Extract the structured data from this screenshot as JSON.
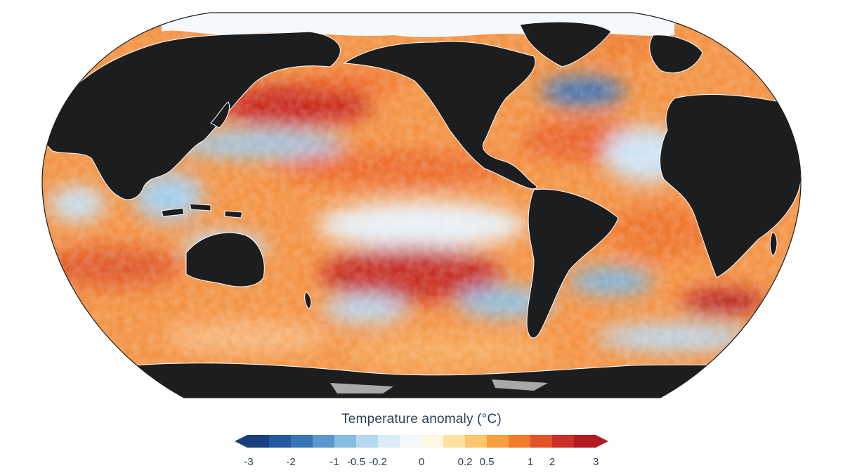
{
  "colors": {
    "land": "#1c1d1f",
    "ice": "#f8fbfd",
    "antarctic_shelf": "#a9a9a9",
    "text": "#2c3e55",
    "scale": [
      "#1a3f7e",
      "#2458a0",
      "#3675b8",
      "#5b98cd",
      "#88bde2",
      "#b6d8ee",
      "#dcecf7",
      "#f3f8fc",
      "#fef7e4",
      "#fde2a2",
      "#fbc66d",
      "#f7a03d",
      "#f17a2b",
      "#e2532b",
      "#cc2e28",
      "#b21b22"
    ]
  },
  "legend": {
    "title": "Temperature anomaly (°C)",
    "tick_labels": [
      "-3",
      "-2",
      "-1",
      "-0.5",
      "-0.2",
      "0",
      "0.2",
      "0.5",
      "1",
      "2",
      "3"
    ]
  },
  "map": {
    "projection": "Robinson",
    "regions": [
      {
        "name": "Northwest Pacific warm anomaly",
        "value": 2.5
      },
      {
        "name": "North Pacific cool band",
        "value": -0.7
      },
      {
        "name": "Northeast Pacific warm band",
        "value": 1.2
      },
      {
        "name": "Central equatorial Pacific cool tongue",
        "value": -0.3
      },
      {
        "name": "Southeast Pacific warm anomaly",
        "value": 2.0
      },
      {
        "name": "South Pacific cool patches",
        "value": -0.6
      },
      {
        "name": "North Atlantic cool patch",
        "value": -1.0
      },
      {
        "name": "Subtropical North Atlantic warm",
        "value": 1.5
      },
      {
        "name": "Tropical Atlantic cool patch",
        "value": -0.4
      },
      {
        "name": "South Atlantic warm",
        "value": 1.2
      },
      {
        "name": "South Atlantic cool",
        "value": -0.8
      },
      {
        "name": "Indian Ocean warm",
        "value": 1.0
      },
      {
        "name": "Maritime continent cool",
        "value": -0.5
      },
      {
        "name": "Southern Ocean mixed",
        "value": 0.8
      }
    ]
  }
}
